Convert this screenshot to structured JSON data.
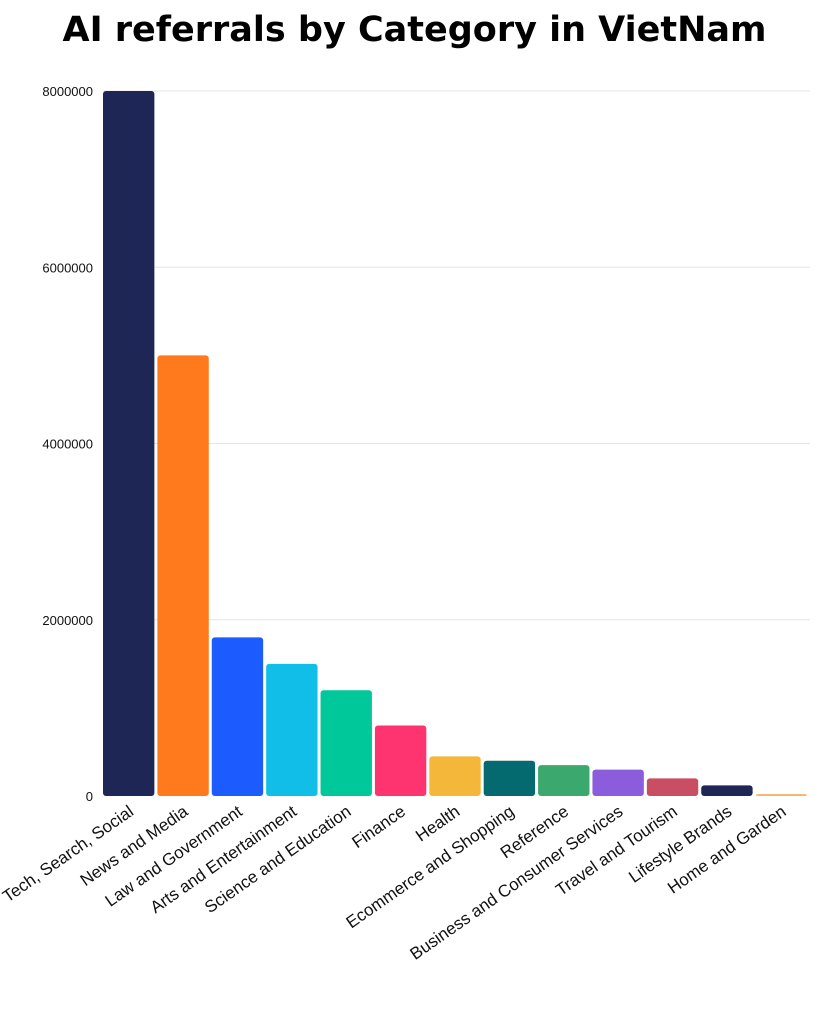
{
  "chart_data": {
    "type": "bar",
    "title": "AI referrals by Category in VietNam",
    "xlabel": "",
    "ylabel": "",
    "ylim": [
      0,
      8000000
    ],
    "yticks": [
      0,
      2000000,
      4000000,
      6000000,
      8000000
    ],
    "grid": true,
    "categories": [
      "Tech, Search, Social",
      "News and Media",
      "Law and Government",
      "Arts and Entertainment",
      "Science and Education",
      "Finance",
      "Health",
      "Ecommerce and Shopping",
      "Reference",
      "Business and Consumer Services",
      "Travel and Tourism",
      "Lifestyle Brands",
      "Home and Garden"
    ],
    "values": [
      8000000,
      5000000,
      1800000,
      1500000,
      1200000,
      800000,
      450000,
      400000,
      350000,
      300000,
      200000,
      120000,
      20000
    ],
    "colors": [
      "#1d2654",
      "#fe7a1d",
      "#1c5bfe",
      "#10bee8",
      "#00c89a",
      "#fe3470",
      "#f4b73a",
      "#056a70",
      "#3ba96d",
      "#8b5cdb",
      "#c94d63",
      "#1d2654",
      "#f4b870"
    ]
  }
}
